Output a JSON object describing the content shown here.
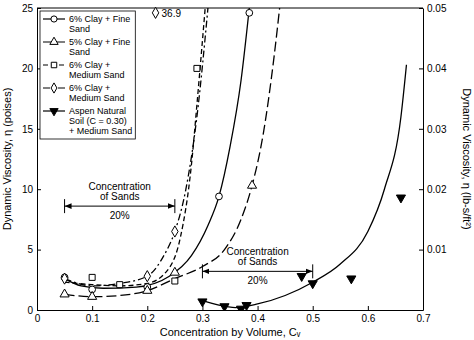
{
  "chart_data": {
    "type": "line",
    "x_label": "Concentration by Volume, Cᵥ",
    "y_label": "Dynamic Viscosity, η (poises)",
    "y2_label": "Dynamic Viscosity, η (lb-s/ft²)",
    "xlim": [
      0,
      0.7
    ],
    "xticks": [
      0,
      0.1,
      0.2,
      0.3,
      0.4,
      0.5,
      0.6,
      0.7
    ],
    "ylim": [
      0,
      25
    ],
    "yticks": [
      0,
      5,
      10,
      15,
      20,
      25
    ],
    "y2lim": [
      0,
      0.05
    ],
    "y2ticks": [
      0.01,
      0.02,
      0.03,
      0.04,
      0.05
    ],
    "grid": false,
    "legend": "upper left",
    "series": [
      {
        "name": "6% Clay + Fine Sand",
        "color": "#000000",
        "marker": "circle",
        "line_style": "solid",
        "x": [
          0.05,
          0.1,
          0.2,
          0.33,
          0.385
        ],
        "values": [
          2.7,
          1.7,
          1.9,
          9.4,
          24.6
        ],
        "curve": {
          "x": [
            0.05,
            0.08,
            0.12,
            0.18,
            0.24,
            0.28,
            0.31,
            0.33,
            0.35,
            0.37,
            0.385
          ],
          "values": [
            2.6,
            2.0,
            1.8,
            1.9,
            2.8,
            4.5,
            7.0,
            9.4,
            13.5,
            19.0,
            25.0
          ]
        }
      },
      {
        "name": "5% Clay + Fine Sand",
        "color": "#000000",
        "marker": "triangle",
        "line_style": "long-dashed",
        "x": [
          0.05,
          0.1,
          0.2,
          0.25,
          0.39
        ],
        "values": [
          1.3,
          1.1,
          1.6,
          3.1,
          10.3
        ],
        "curve": {
          "x": [
            0.05,
            0.1,
            0.15,
            0.2,
            0.25,
            0.3,
            0.34,
            0.37,
            0.39,
            0.41,
            0.43,
            0.44
          ],
          "values": [
            1.3,
            1.1,
            1.2,
            1.6,
            2.6,
            3.6,
            5.0,
            7.5,
            10.3,
            14.5,
            21.0,
            25.0
          ]
        }
      },
      {
        "name": "6% Clay + Medium Sand",
        "color": "#000000",
        "marker": "square",
        "line_style": "dashed",
        "x": [
          0.1,
          0.15,
          0.25,
          0.29
        ],
        "values": [
          2.7,
          2.1,
          2.4,
          20.0
        ],
        "curve": {
          "x": [
            0.05,
            0.1,
            0.15,
            0.2,
            0.24,
            0.26,
            0.28,
            0.29,
            0.305
          ],
          "values": [
            2.3,
            2.1,
            2.0,
            2.2,
            3.5,
            6.0,
            12.0,
            17.0,
            25.0
          ]
        }
      },
      {
        "name": "6% Clay + Medium Sand",
        "color": "#000000",
        "marker": "diamond",
        "line_style": "dash-dot",
        "x": [
          0.05,
          0.2,
          0.25
        ],
        "values": [
          2.6,
          2.8,
          6.5
        ],
        "curve": {
          "x": [
            0.05,
            0.1,
            0.15,
            0.2,
            0.23,
            0.25,
            0.27,
            0.29,
            0.31
          ],
          "values": [
            2.6,
            2.0,
            2.2,
            2.8,
            4.5,
            6.5,
            10.0,
            16.0,
            25.0
          ]
        }
      },
      {
        "name": "Aspen Natural Soil (C = 0.30) + Medium Sand",
        "color": "#000000",
        "marker": "filled-triangle-down",
        "line_style": "solid",
        "x": [
          0.3,
          0.34,
          0.37,
          0.38,
          0.48,
          0.5,
          0.57,
          0.66
        ],
        "values": [
          0.7,
          0.3,
          0.1,
          0.4,
          2.8,
          2.2,
          2.6,
          9.3
        ],
        "curve": {
          "x": [
            0.3,
            0.33,
            0.36,
            0.4,
            0.45,
            0.5,
            0.55,
            0.6,
            0.63,
            0.66,
            0.67
          ],
          "values": [
            0.8,
            0.4,
            0.2,
            0.5,
            1.2,
            2.3,
            3.8,
            6.5,
            10.0,
            16.0,
            20.3
          ]
        }
      }
    ],
    "annotations": [
      {
        "text": "36.9",
        "x": 0.215,
        "y": 24.6
      },
      {
        "text": "Concentration of Sands",
        "range_label": "20%",
        "x_range": [
          0.05,
          0.25
        ],
        "y": 8.6
      },
      {
        "text": "Concentration of Sands",
        "range_label": "20%",
        "x_range": [
          0.3,
          0.5
        ],
        "y": 3.2
      }
    ]
  }
}
